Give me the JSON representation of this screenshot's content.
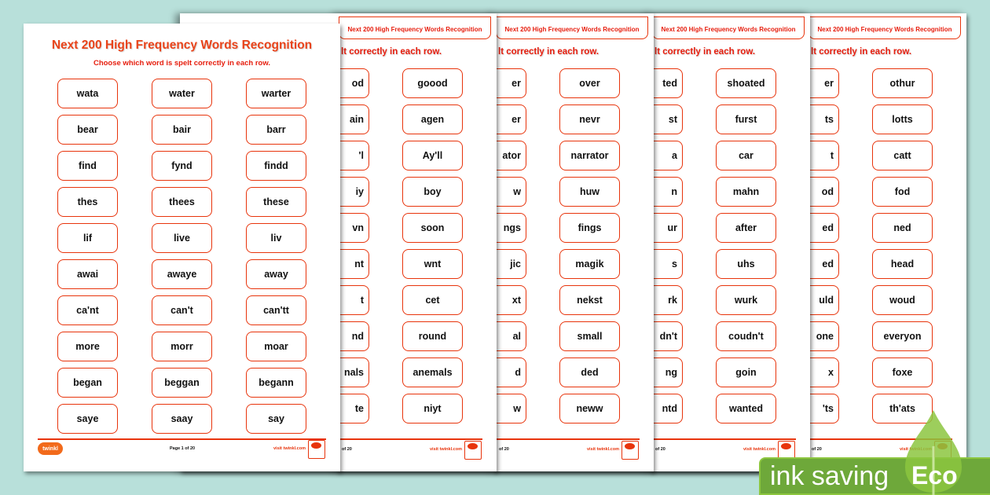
{
  "worksheet": {
    "title": "Next 200 High Frequency Words Recognition",
    "subtitle": "Choose which word is spelt correctly in each row.",
    "subtitle_partial": "lt correctly in each row.",
    "logo": "twinkl",
    "page_label": "Page 1 of 20",
    "page_label_partial": "of 20",
    "visit": "visit twinkl.com",
    "accent_color": "#e8340c"
  },
  "page1": {
    "rows": [
      [
        "wata",
        "water",
        "warter"
      ],
      [
        "bear",
        "bair",
        "barr"
      ],
      [
        "find",
        "fynd",
        "findd"
      ],
      [
        "thes",
        "thees",
        "these"
      ],
      [
        "lif",
        "live",
        "liv"
      ],
      [
        "awai",
        "awaye",
        "away"
      ],
      [
        "ca'nt",
        "can't",
        "can'tt"
      ],
      [
        "more",
        "morr",
        "moar"
      ],
      [
        "began",
        "beggan",
        "begann"
      ],
      [
        "saye",
        "saay",
        "say"
      ]
    ]
  },
  "back_pages": [
    {
      "partial": [
        "od",
        "ain",
        "'l",
        "iy",
        "vn",
        "nt",
        "t",
        "nd",
        "nals",
        "te"
      ],
      "full": [
        "goood",
        "agen",
        "Ay'll",
        "boy",
        "soon",
        "wnt",
        "cet",
        "round",
        "anemals",
        "niyt"
      ]
    },
    {
      "partial": [
        "er",
        "er",
        "ator",
        "w",
        "ngs",
        "jic",
        "xt",
        "al",
        "d",
        "w"
      ],
      "full": [
        "over",
        "nevr",
        "narrator",
        "huw",
        "fings",
        "magik",
        "nekst",
        "small",
        "ded",
        "neww"
      ]
    },
    {
      "partial": [
        "ted",
        "st",
        "a",
        "n",
        "ur",
        "s",
        "rk",
        "dn't",
        "ng",
        "ntd"
      ],
      "full": [
        "shoated",
        "furst",
        "car",
        "mahn",
        "after",
        "uhs",
        "wurk",
        "coudn't",
        "goin",
        "wanted"
      ]
    },
    {
      "partial": [
        "er",
        "ts",
        "t",
        "od",
        "ed",
        "ed",
        "uld",
        "one",
        "x",
        "'ts"
      ],
      "full": [
        "othur",
        "lotts",
        "catt",
        "fod",
        "ned",
        "head",
        "woud",
        "everyon",
        "foxe",
        "th'ats"
      ]
    }
  ],
  "eco_badge": {
    "label": "ink saving",
    "eco": "Eco",
    "color": "#6ea83a"
  }
}
